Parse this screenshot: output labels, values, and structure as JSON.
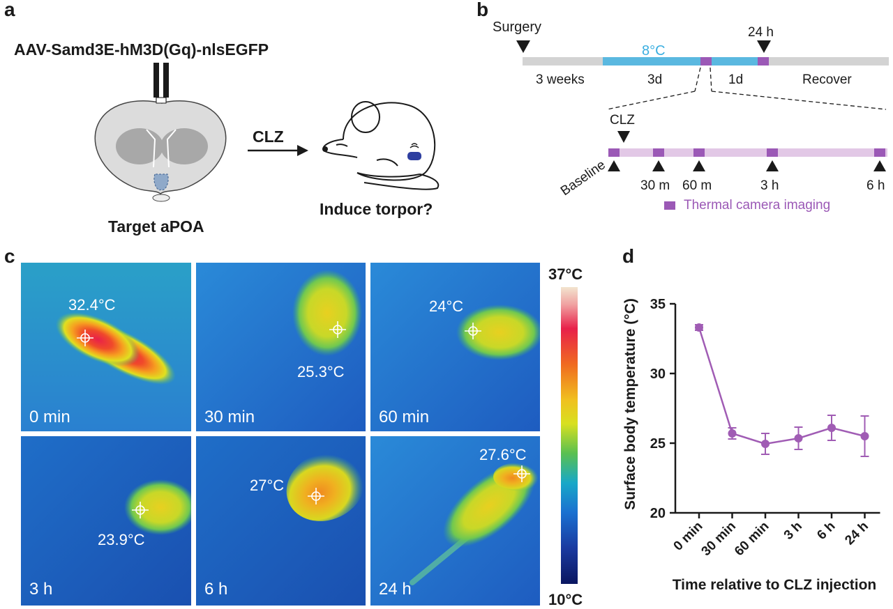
{
  "panel_a": {
    "letter": "a",
    "virus": "AAV-Samd3E-hM3D(Gq)-nlsEGFP",
    "target": "Target aPOA",
    "drug": "CLZ",
    "outcome": "Induce torpor?"
  },
  "panel_b": {
    "letter": "b",
    "surgery": "Surgery",
    "cold": "8°C",
    "t24": "24 h",
    "seg_weeks": "3 weeks",
    "seg_3d": "3d",
    "seg_1d": "1d",
    "seg_recover": "Recover",
    "clz": "CLZ",
    "timepoints": [
      "Baseline",
      "30 m",
      "60 m",
      "3 h",
      "6 h"
    ],
    "legend": "Thermal camera imaging",
    "colors": {
      "cold": "#5ab8e0",
      "purple": "#9b59b6",
      "light_purple": "#e2c8e6",
      "gray": "#d3d3d3"
    }
  },
  "panel_c": {
    "letter": "c",
    "frames": [
      {
        "time": "0 min",
        "temp": "32.4°C"
      },
      {
        "time": "30 min",
        "temp": "25.3°C"
      },
      {
        "time": "60 min",
        "temp": "24°C"
      },
      {
        "time": "3 h",
        "temp": "23.9°C"
      },
      {
        "time": "6 h",
        "temp": "27°C"
      },
      {
        "time": "24 h",
        "temp": "27.6°C"
      }
    ],
    "scale_max": "37°C",
    "scale_min": "10°C"
  },
  "panel_d": {
    "letter": "d"
  },
  "chart_data": {
    "type": "line",
    "categories": [
      "0 min",
      "30 min",
      "60 min",
      "3 h",
      "6 h",
      "24 h"
    ],
    "series": [
      {
        "values": [
          33.3,
          25.7,
          24.95,
          25.35,
          26.1,
          25.5
        ],
        "error": [
          0.2,
          0.4,
          0.75,
          0.8,
          0.9,
          1.45
        ]
      }
    ],
    "xlabel": "Time relative to CLZ injection",
    "ylabel": "Surface body temperature (°C)",
    "ylim": [
      20,
      35
    ],
    "yticks": [
      20,
      25,
      30,
      35
    ],
    "color": "#a05cb4",
    "grid": false
  }
}
